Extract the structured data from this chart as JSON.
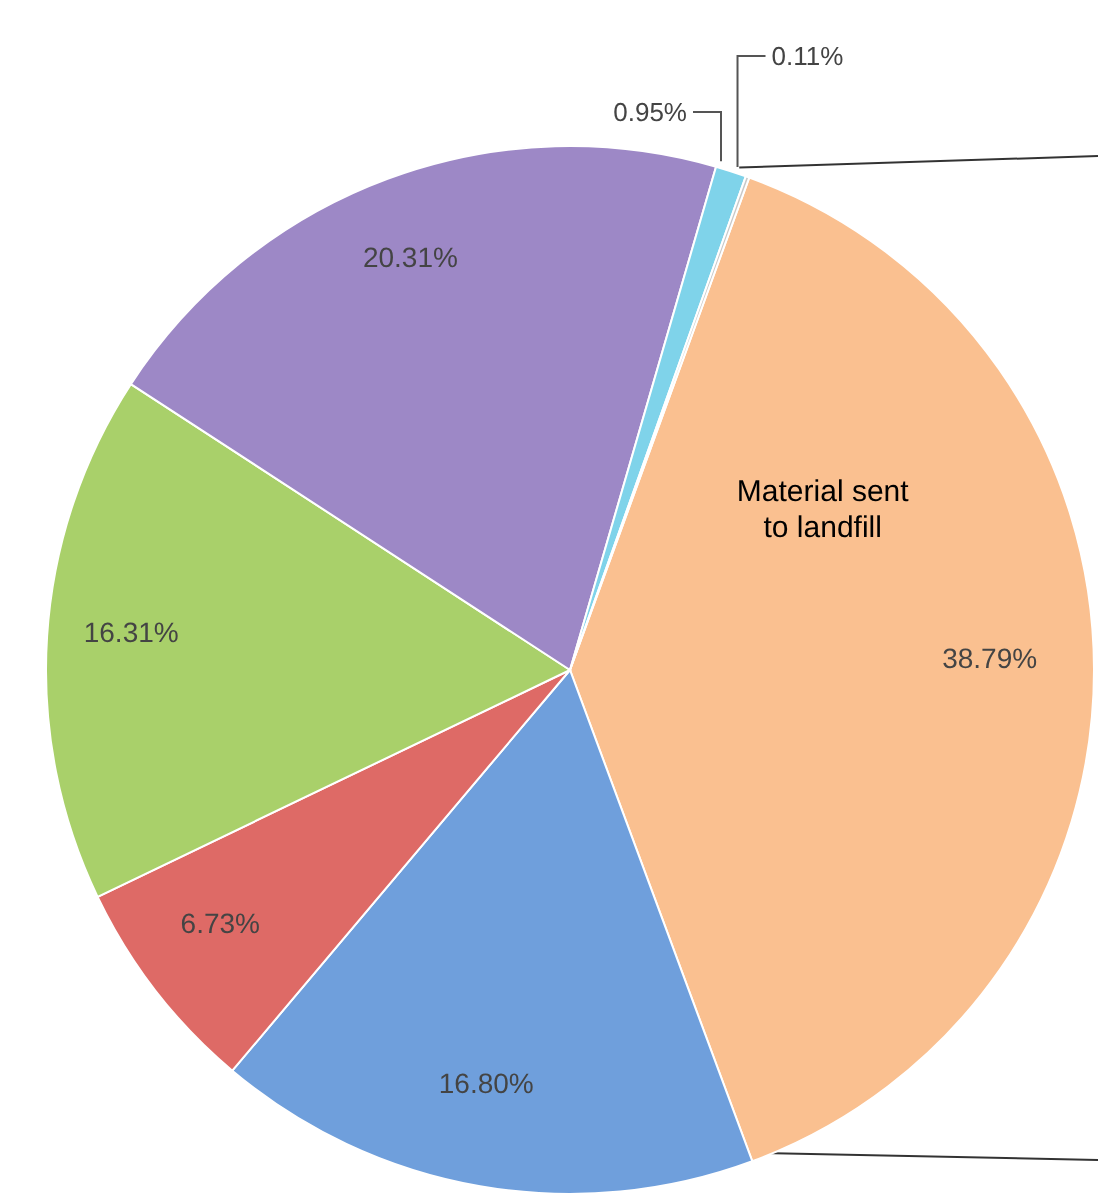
{
  "chart_data": {
    "type": "pie",
    "categories": [
      "Material sent to landfill",
      null,
      null,
      null,
      null,
      null,
      null
    ],
    "values": [
      38.79,
      16.8,
      6.73,
      16.31,
      20.31,
      0.95,
      0.11
    ],
    "value_labels": [
      "38.79%",
      "16.80%",
      "6.73%",
      "16.31%",
      "20.31%",
      "0.95%",
      "0.11%"
    ],
    "colors": [
      "#fac090",
      "#6f9fdc",
      "#de6a66",
      "#a9d06a",
      "#9d88c6",
      "#7fd3ea",
      "#c8c8c8"
    ]
  }
}
